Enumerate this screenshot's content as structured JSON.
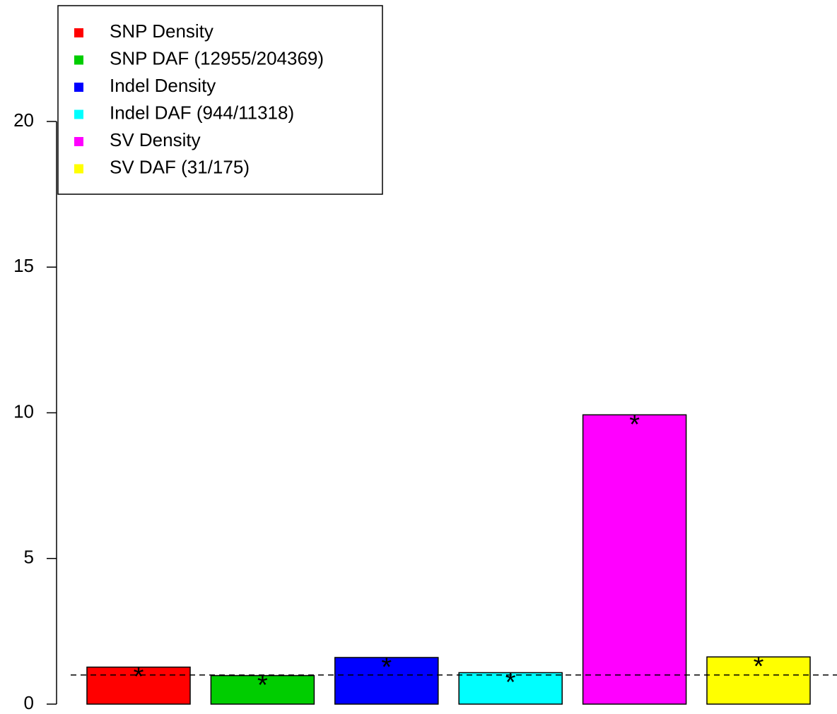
{
  "chart_data": {
    "type": "bar",
    "categories": [
      "SNP Density",
      "SNP DAF (12955/204369)",
      "Indel Density",
      "Indel DAF (944/11318)",
      "SV Density",
      "SV DAF (31/175)"
    ],
    "values": [
      1.27,
      0.98,
      1.6,
      1.08,
      9.93,
      1.62
    ],
    "colors": [
      "#ff0000",
      "#00cd00",
      "#0000ff",
      "#00ffff",
      "#ff00ff",
      "#ffff00"
    ],
    "annotations": [
      "*",
      "*",
      "*",
      "*",
      "*",
      "*"
    ],
    "reference_line": 1,
    "ylim": [
      0,
      20
    ],
    "yticks": [
      0,
      5,
      10,
      15,
      20
    ],
    "legend_position": "top-left",
    "grid": false
  },
  "legend": [
    {
      "label": "SNP Density",
      "color": "#ff0000"
    },
    {
      "label": "SNP DAF (12955/204369)",
      "color": "#00cd00"
    },
    {
      "label": "Indel Density",
      "color": "#0000ff"
    },
    {
      "label": "Indel DAF (944/11318)",
      "color": "#00ffff"
    },
    {
      "label": "SV Density",
      "color": "#ff00ff"
    },
    {
      "label": "SV DAF (31/175)",
      "color": "#ffff00"
    }
  ]
}
